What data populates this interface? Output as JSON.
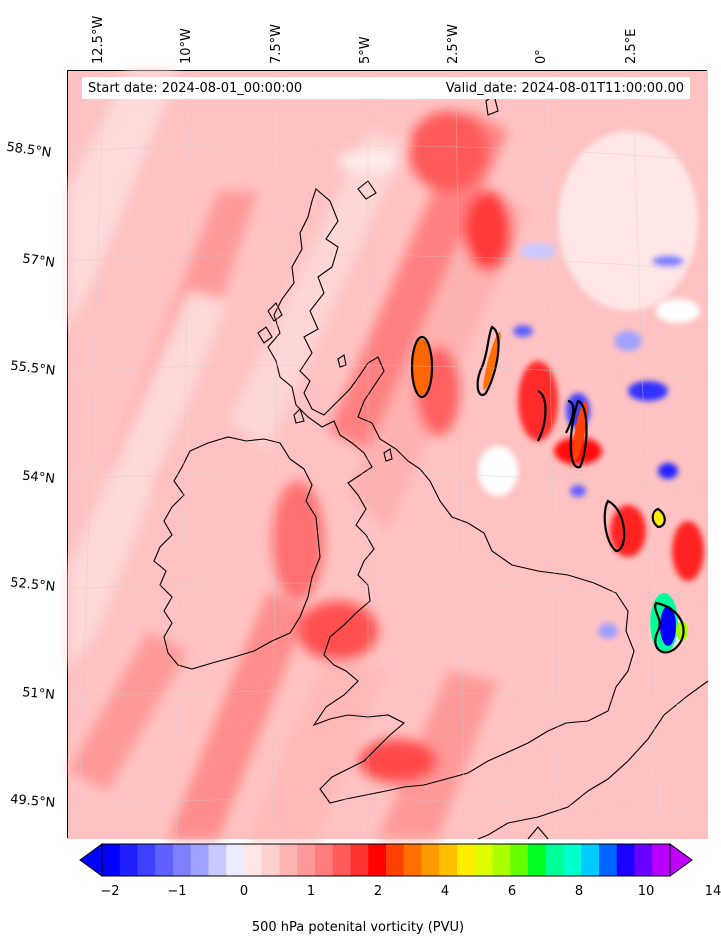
{
  "header": {
    "start_date": "Start date: 2024-08-01_00:00:00",
    "valid_date": "Valid_date: 2024-08-01T11:00:00.00"
  },
  "lon_labels": [
    "12.5°W",
    "10°W",
    "7.5°W",
    "5°W",
    "2.5°W",
    "0°",
    "2.5°E"
  ],
  "lat_labels": [
    "58.5°N",
    "57°N",
    "55.5°N",
    "54°N",
    "52.5°N",
    "51°N",
    "49.5°N"
  ],
  "colorbar": {
    "label": "500 hPa potenital vorticity (PVU)",
    "ticks": [
      "−2",
      "−1",
      "0",
      "1",
      "2",
      "4",
      "6",
      "8",
      "10",
      "14"
    ],
    "colors": [
      "#0000ff",
      "#2020ff",
      "#4040ff",
      "#6060ff",
      "#8080ff",
      "#a0a0ff",
      "#c8c8ff",
      "#ececff",
      "#ffe6e6",
      "#ffd0d0",
      "#ffb4b4",
      "#ff9898",
      "#ff7c7c",
      "#ff5a5a",
      "#ff3232",
      "#ff0000",
      "#ff4000",
      "#ff7000",
      "#ff9900",
      "#ffc000",
      "#ffee00",
      "#ddff00",
      "#aaff00",
      "#66ff00",
      "#00ff20",
      "#00ff99",
      "#00ffcc",
      "#00ccff",
      "#0066ff",
      "#1a00ff",
      "#6a00ff",
      "#b800ff"
    ]
  },
  "map": {
    "background_color": "#ffc4c4",
    "land_outline_color": "#000000"
  }
}
